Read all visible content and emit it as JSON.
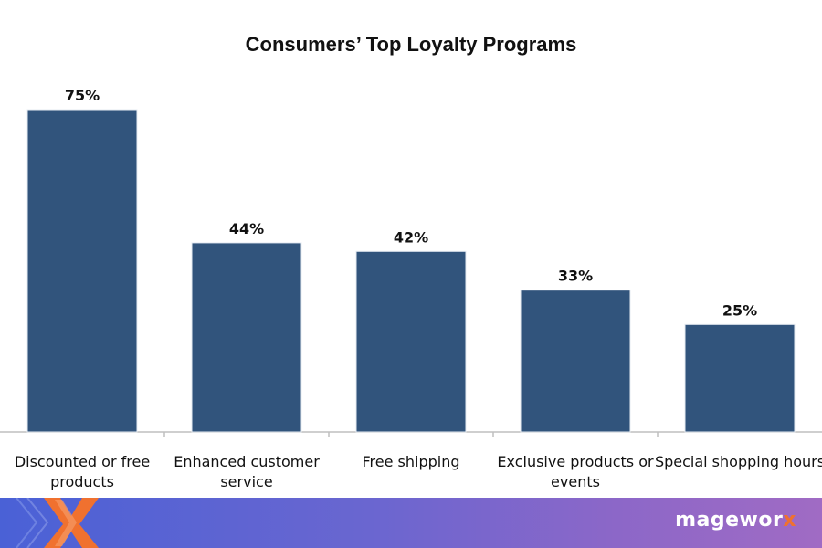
{
  "chart_data": {
    "type": "bar",
    "title": "Consumers’ Top Loyalty Programs",
    "categories": [
      [
        "Discounted or free",
        "products"
      ],
      [
        "Enhanced customer",
        "service"
      ],
      [
        "Free shipping"
      ],
      [
        "Exclusive products or",
        "events"
      ],
      [
        "Special shopping hours"
      ]
    ],
    "values": [
      75,
      44,
      42,
      33,
      25
    ],
    "value_labels": [
      "75%",
      "44%",
      "42%",
      "33%",
      "25%"
    ],
    "ylim": [
      0,
      75
    ],
    "xlabel": "",
    "ylabel": "",
    "grid": false,
    "bar_color": "#31547c"
  },
  "footer": {
    "brand_main": "magewor",
    "brand_accent": "x",
    "accent_color": "#f0712f"
  }
}
